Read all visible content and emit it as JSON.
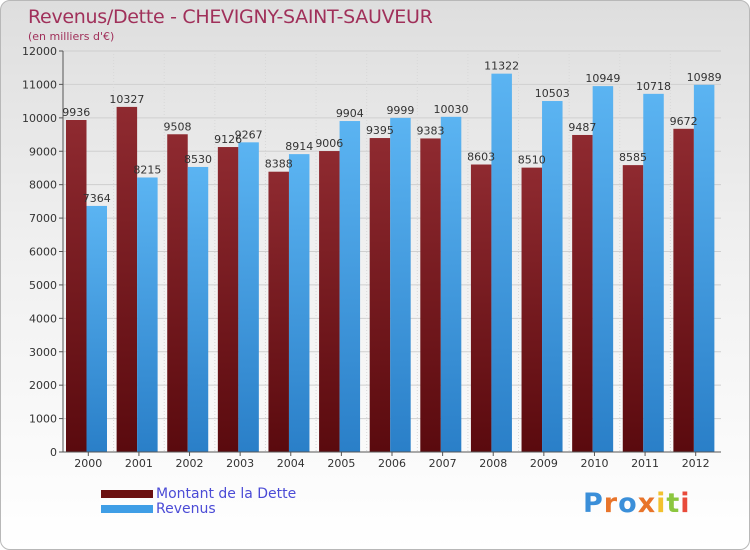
{
  "title": "Revenus/Dette - CHEVIGNY-SAINT-SAUVEUR",
  "subtitle": "(en milliers d'€)",
  "colors": {
    "title": "#a0305a",
    "dette": "#7a1a22",
    "revenus": "#3f9ee6",
    "legend_text": "#4b4bd6"
  },
  "legend": [
    {
      "label": "Montant de la Dette",
      "color": "#6b1010"
    },
    {
      "label": "Revenus",
      "color": "#3f9ee6"
    }
  ],
  "logo": {
    "letters": [
      "P",
      "r",
      "o",
      "x",
      "i",
      "t",
      "i"
    ],
    "colors": [
      "#3b8fd9",
      "#e8742a",
      "#3b8fd9",
      "#e8742a",
      "#f2c12e",
      "#8cc63f",
      "#e84a3a"
    ]
  },
  "chart_data": {
    "type": "bar",
    "categories": [
      "2000",
      "2001",
      "2002",
      "2003",
      "2004",
      "2005",
      "2006",
      "2007",
      "2008",
      "2009",
      "2010",
      "2011",
      "2012"
    ],
    "series": [
      {
        "name": "Montant de la Dette",
        "values": [
          9936,
          10327,
          9508,
          9126,
          8388,
          9006,
          9395,
          9383,
          8603,
          8510,
          9487,
          8585,
          9672
        ]
      },
      {
        "name": "Revenus",
        "values": [
          7364,
          8215,
          8530,
          9267,
          8914,
          9904,
          9999,
          10030,
          11322,
          10503,
          10949,
          10718,
          10989
        ]
      }
    ],
    "data_labels": [
      [
        "9936",
        "10327",
        "9508",
        "9126",
        "8388",
        "9006",
        "9395",
        "9383",
        "8603",
        "8510",
        "9487",
        "8585",
        "9672"
      ],
      [
        "7364",
        "8215",
        "8530",
        "9267",
        "8914",
        "9904",
        "9999",
        "10030",
        "11322",
        "10503",
        "10949",
        "10718",
        "10989"
      ]
    ],
    "y_ticks": [
      0,
      1000,
      2000,
      3000,
      4000,
      5000,
      6000,
      7000,
      8000,
      9000,
      10000,
      11000,
      12000
    ],
    "ylim": [
      0,
      12000
    ],
    "grid": true,
    "legend_position": "bottom-left"
  }
}
